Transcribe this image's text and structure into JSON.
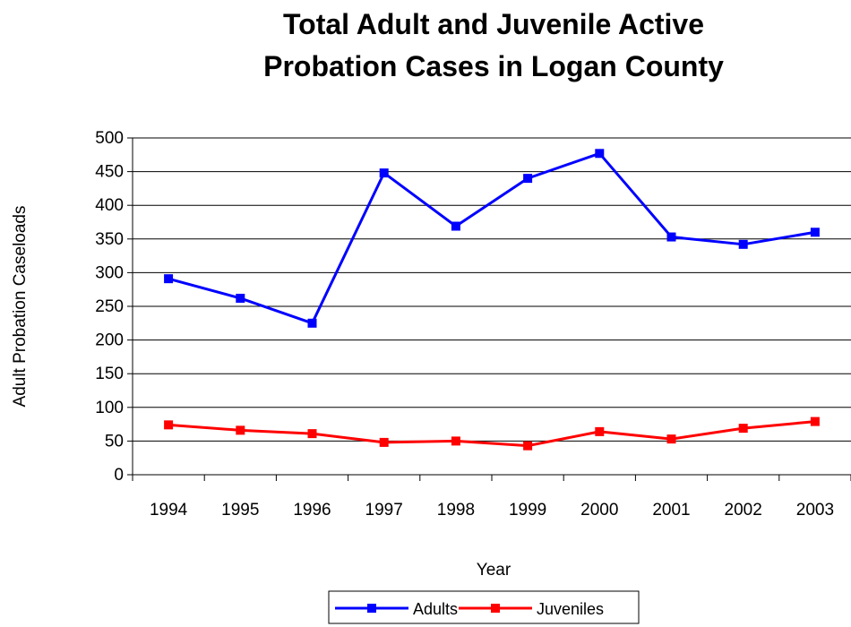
{
  "chart_data": {
    "type": "line",
    "title_lines": [
      "Total Adult and Juvenile Active",
      "Probation Cases in Logan County"
    ],
    "xlabel": "Year",
    "ylabel": "Adult Probation Caseloads",
    "categories": [
      "1994",
      "1995",
      "1996",
      "1997",
      "1998",
      "1999",
      "2000",
      "2001",
      "2002",
      "2003"
    ],
    "ylim": [
      0,
      500
    ],
    "yticks": [
      "0",
      "50",
      "100",
      "150",
      "200",
      "250",
      "300",
      "350",
      "400",
      "450",
      "500"
    ],
    "grid": true,
    "legend_position": "bottom",
    "series": [
      {
        "name": "Adults",
        "color": "#0000ff",
        "marker": "square",
        "values": [
          291,
          262,
          225,
          448,
          369,
          440,
          477,
          353,
          342,
          360
        ]
      },
      {
        "name": "Juveniles",
        "color": "#ff0000",
        "marker": "square",
        "values": [
          74,
          66,
          61,
          48,
          50,
          43,
          64,
          53,
          69,
          79
        ]
      }
    ]
  }
}
